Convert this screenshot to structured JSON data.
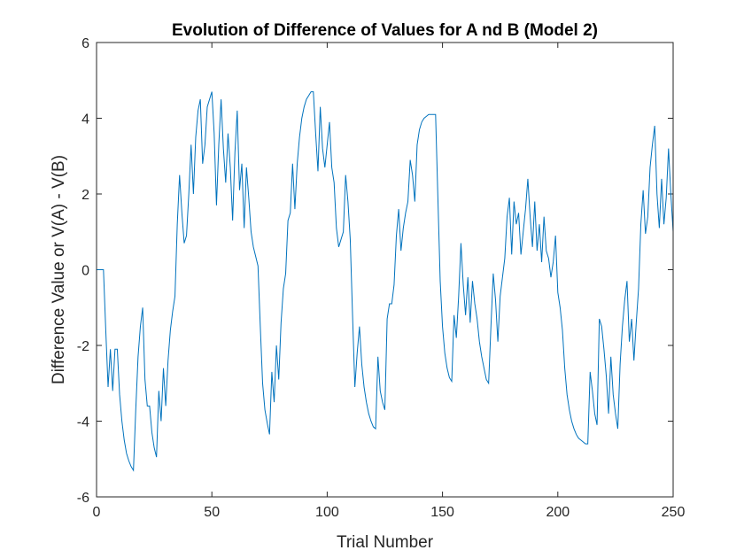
{
  "chart_data": {
    "type": "line",
    "title": "Evolution of Difference of Values for A nd B (Model 2)",
    "xlabel": "Trial Number",
    "ylabel": "Difference Value or V(A) - V(B)",
    "xlim": [
      0,
      250
    ],
    "ylim": [
      -6,
      6
    ],
    "xticks": [
      0,
      50,
      100,
      150,
      200,
      250
    ],
    "yticks": [
      -6,
      -4,
      -2,
      0,
      2,
      4,
      6
    ],
    "grid": false,
    "line_color": "#0072bd",
    "series": [
      {
        "x": [
          0,
          1,
          2,
          3,
          4,
          5,
          6,
          7,
          8,
          9,
          10,
          11,
          12,
          13,
          14,
          15,
          16,
          17,
          18,
          19,
          20,
          21,
          22,
          23,
          24,
          25,
          26,
          27,
          28,
          29,
          30,
          31,
          32,
          33,
          34,
          35,
          36,
          37,
          38,
          39,
          40,
          41,
          42,
          43,
          44,
          45,
          46,
          47,
          48,
          49,
          50,
          51,
          52,
          53,
          54,
          55,
          56,
          57,
          58,
          59,
          60,
          61,
          62,
          63,
          64,
          65,
          66,
          67,
          68,
          69,
          70,
          71,
          72,
          73,
          74,
          75,
          76,
          77,
          78,
          79,
          80,
          81,
          82,
          83,
          84,
          85,
          86,
          87,
          88,
          89,
          90,
          91,
          92,
          93,
          94,
          95,
          96,
          97,
          98,
          99,
          100,
          101,
          102,
          103,
          104,
          105,
          106,
          107,
          108,
          109,
          110,
          111,
          112,
          113,
          114,
          115,
          116,
          117,
          118,
          119,
          120,
          121,
          122,
          123,
          124,
          125,
          126,
          127,
          128,
          129,
          130,
          131,
          132,
          133,
          134,
          135,
          136,
          137,
          138,
          139,
          140,
          141,
          142,
          143,
          144,
          145,
          146,
          147,
          148,
          149,
          150,
          151,
          152,
          153,
          154,
          155,
          156,
          157,
          158,
          159,
          160,
          161,
          162,
          163,
          164,
          165,
          166,
          167,
          168,
          169,
          170,
          171,
          172,
          173,
          174,
          175,
          176,
          177,
          178,
          179,
          180,
          181,
          182,
          183,
          184,
          185,
          186,
          187,
          188,
          189,
          190,
          191,
          192,
          193,
          194,
          195,
          196,
          197,
          198,
          199,
          200,
          201,
          202,
          203,
          204,
          205,
          206,
          207,
          208,
          209,
          210,
          211,
          212,
          213,
          214,
          215,
          216,
          217,
          218,
          219,
          220,
          221,
          222,
          223,
          224,
          225,
          226,
          227,
          228,
          229,
          230,
          231,
          232,
          233,
          234,
          235,
          236,
          237,
          238,
          239,
          240,
          241,
          242,
          243,
          244,
          245,
          246,
          247,
          248,
          249,
          250
        ],
        "y": [
          0,
          0,
          0,
          0,
          -1.6,
          -3.1,
          -2.1,
          -3.2,
          -2.1,
          -2.1,
          -3.3,
          -4.0,
          -4.5,
          -4.85,
          -5.05,
          -5.2,
          -5.3,
          -3.7,
          -2.3,
          -1.5,
          -1.0,
          -2.9,
          -3.6,
          -3.6,
          -4.3,
          -4.7,
          -4.95,
          -3.2,
          -4.0,
          -2.6,
          -3.6,
          -2.4,
          -1.6,
          -1.1,
          -0.7,
          1.2,
          2.5,
          1.5,
          0.7,
          0.9,
          2.0,
          3.3,
          2.0,
          3.5,
          4.2,
          4.5,
          2.8,
          3.3,
          4.3,
          4.5,
          4.7,
          3.6,
          1.7,
          3.3,
          4.5,
          3.2,
          2.3,
          3.6,
          2.7,
          1.3,
          3.1,
          4.2,
          2.1,
          2.8,
          1.1,
          2.7,
          1.9,
          1.0,
          0.6,
          0.35,
          0.1,
          -1.5,
          -3.0,
          -3.7,
          -4.05,
          -4.35,
          -2.7,
          -3.5,
          -2.0,
          -2.9,
          -1.4,
          -0.5,
          -0.1,
          1.3,
          1.5,
          2.8,
          1.6,
          2.8,
          3.5,
          4.0,
          4.3,
          4.5,
          4.6,
          4.7,
          4.7,
          3.6,
          2.6,
          4.3,
          3.2,
          2.7,
          3.3,
          3.9,
          2.7,
          2.3,
          1.1,
          0.6,
          0.8,
          1.0,
          2.5,
          1.8,
          0.8,
          -1.2,
          -3.1,
          -2.2,
          -1.5,
          -2.5,
          -3.1,
          -3.5,
          -3.8,
          -4.0,
          -4.15,
          -4.2,
          -2.3,
          -3.2,
          -3.5,
          -3.7,
          -1.3,
          -0.9,
          -0.9,
          -0.4,
          0.9,
          1.6,
          0.5,
          1.1,
          1.5,
          1.8,
          2.9,
          2.5,
          1.8,
          3.3,
          3.7,
          3.9,
          4.0,
          4.05,
          4.1,
          4.1,
          4.1,
          4.1,
          1.9,
          -0.3,
          -1.5,
          -2.2,
          -2.6,
          -2.85,
          -2.95,
          -1.2,
          -1.8,
          -0.7,
          0.7,
          -0.4,
          -1.2,
          -0.2,
          -1.4,
          -0.3,
          -0.9,
          -1.3,
          -1.9,
          -2.3,
          -2.6,
          -2.9,
          -3.0,
          -1.5,
          -0.1,
          -0.8,
          -1.9,
          -0.7,
          -0.2,
          0.3,
          1.4,
          1.9,
          0.4,
          1.8,
          1.2,
          1.5,
          0.4,
          1.0,
          1.6,
          2.4,
          1.4,
          0.6,
          1.8,
          0.5,
          1.2,
          0.2,
          1.4,
          0.5,
          0.3,
          -0.2,
          0.2,
          0.9,
          -0.6,
          -1.0,
          -1.6,
          -2.6,
          -3.3,
          -3.7,
          -4.0,
          -4.2,
          -4.35,
          -4.45,
          -4.5,
          -4.55,
          -4.6,
          -4.6,
          -2.7,
          -3.2,
          -3.8,
          -4.1,
          -1.3,
          -1.5,
          -2.1,
          -2.8,
          -3.8,
          -2.3,
          -3.3,
          -3.8,
          -4.2,
          -2.5,
          -1.5,
          -0.8,
          -0.3,
          -1.9,
          -1.3,
          -2.4,
          -1.4,
          -0.5,
          1.2,
          2.1,
          0.95,
          1.4,
          2.7,
          3.3,
          3.8,
          2.0,
          1.1,
          2.4,
          1.2,
          1.9,
          3.2,
          2.0,
          1.0
        ]
      }
    ]
  }
}
